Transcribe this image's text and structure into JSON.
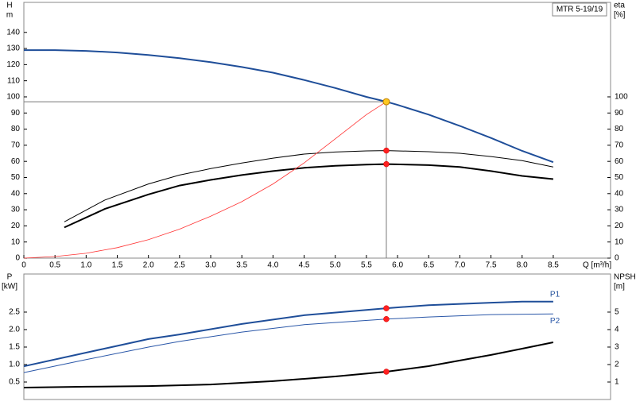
{
  "chart_data": [
    {
      "type": "line",
      "ylabel": [
        "H",
        "m"
      ],
      "y2label": [
        "eta",
        "[%]"
      ],
      "xlabel": "Q [m³/h]",
      "label_box": "MTR 5-19/19",
      "xlim": [
        0,
        9.42
      ],
      "ylim": [
        0,
        158.6
      ],
      "y2lim": [
        0,
        158.6
      ],
      "xticks": [
        0,
        0.5,
        {
          "value": 1,
          "label": "1.0"
        },
        1.5,
        {
          "value": 2,
          "label": "2.0"
        },
        2.5,
        {
          "value": 3,
          "label": "3.0"
        },
        3.5,
        {
          "value": 4,
          "label": "4.0"
        },
        4.5,
        {
          "value": 5,
          "label": "5.0"
        },
        5.5,
        {
          "value": 6,
          "label": "6.0"
        },
        6.5,
        {
          "value": 7,
          "label": "7.0"
        },
        7.5,
        {
          "value": 8,
          "label": "8.0"
        },
        8.5
      ],
      "yticks": [
        0,
        10,
        20,
        30,
        40,
        50,
        60,
        70,
        80,
        90,
        100,
        110,
        120,
        130,
        140
      ],
      "y2ticks": [
        0,
        10,
        20,
        30,
        40,
        50,
        60,
        70,
        80,
        90,
        100
      ],
      "duty_point": {
        "x": 5.82,
        "y": 97
      },
      "series": [
        {
          "color": "#1f4e99",
          "line_width": 2,
          "x": [
            0,
            0.5,
            1,
            1.5,
            2,
            2.5,
            3,
            3.5,
            4,
            4.5,
            5,
            5.5,
            5.82,
            6,
            6.5,
            7,
            7.5,
            8,
            8.5
          ],
          "values": [
            129,
            129,
            128.5,
            127.5,
            126,
            124,
            121.5,
            118.5,
            115,
            110.5,
            105.5,
            100,
            97,
            95,
            89,
            82,
            74.5,
            66.5,
            59.5
          ]
        },
        {
          "color": "#000000",
          "line_width": 1,
          "axis": "y2",
          "x": [
            0.65,
            1.3,
            2,
            2.5,
            3,
            3.5,
            4,
            4.5,
            5,
            5.5,
            5.82,
            6.5,
            7,
            7.5,
            8,
            8.5
          ],
          "values": [
            22.5,
            36,
            46,
            51.5,
            55.5,
            59,
            62,
            64.5,
            65.8,
            66.5,
            66.7,
            66,
            65,
            63,
            60.5,
            56.5
          ]
        },
        {
          "color": "#000000",
          "line_width": 2,
          "axis": "y2",
          "x": [
            0.65,
            1.3,
            2,
            2.5,
            3,
            3.5,
            4,
            4.5,
            5,
            5.5,
            5.82,
            6.5,
            7,
            7.5,
            8,
            8.5
          ],
          "values": [
            19,
            30.5,
            39.5,
            45,
            48.5,
            51.5,
            54,
            56,
            57.3,
            58,
            58.3,
            57.7,
            56.5,
            54,
            51,
            49
          ]
        },
        {
          "color": "#ff3333",
          "line_width": 0.8,
          "x": [
            0,
            0.5,
            1,
            1.5,
            2,
            2.5,
            3,
            3.5,
            4,
            4.5,
            5,
            5.5,
            5.82
          ],
          "values": [
            0,
            1,
            3,
            6.5,
            11.5,
            18,
            26,
            35,
            46,
            59,
            74,
            89,
            97
          ]
        }
      ]
    },
    {
      "type": "line",
      "ylabel": [
        "P",
        "[kW]"
      ],
      "y2label": [
        "NPSH",
        "[m]"
      ],
      "xlim": [
        0,
        9.42
      ],
      "ylim": [
        0,
        3.59
      ],
      "y2lim": [
        0,
        7.18
      ],
      "yticks": [
        0.5,
        {
          "value": 1,
          "label": "1.0"
        },
        1.5,
        {
          "value": 2,
          "label": "2.0"
        },
        2.5
      ],
      "y2ticks": [
        1,
        2,
        3,
        4,
        5
      ],
      "duty_point": {
        "x": 5.82
      },
      "series": [
        {
          "name": "P1",
          "color": "#1f4e99",
          "line_width": 2,
          "x": [
            0,
            1,
            2,
            2.5,
            3.5,
            4.5,
            5.82,
            6.5,
            7.5,
            8,
            8.5
          ],
          "values": [
            0.95,
            1.34,
            1.73,
            1.86,
            2.16,
            2.41,
            2.61,
            2.7,
            2.77,
            2.8,
            2.8
          ]
        },
        {
          "name": "P2",
          "color": "#2a57a8",
          "line_width": 1,
          "x": [
            0,
            1,
            2,
            2.5,
            3.5,
            4.5,
            5.82,
            6.5,
            7.5,
            8.5
          ],
          "values": [
            0.77,
            1.14,
            1.5,
            1.66,
            1.93,
            2.14,
            2.3,
            2.36,
            2.43,
            2.45
          ]
        },
        {
          "color": "#000000",
          "line_width": 2,
          "axis": "y2",
          "x": [
            0,
            1,
            2,
            3,
            4,
            5,
            5.82,
            6.5,
            7,
            7.5,
            8,
            8.5
          ],
          "values": [
            0.68,
            0.73,
            0.77,
            0.86,
            1.05,
            1.32,
            1.59,
            1.91,
            2.23,
            2.55,
            2.91,
            3.27
          ]
        }
      ]
    }
  ]
}
